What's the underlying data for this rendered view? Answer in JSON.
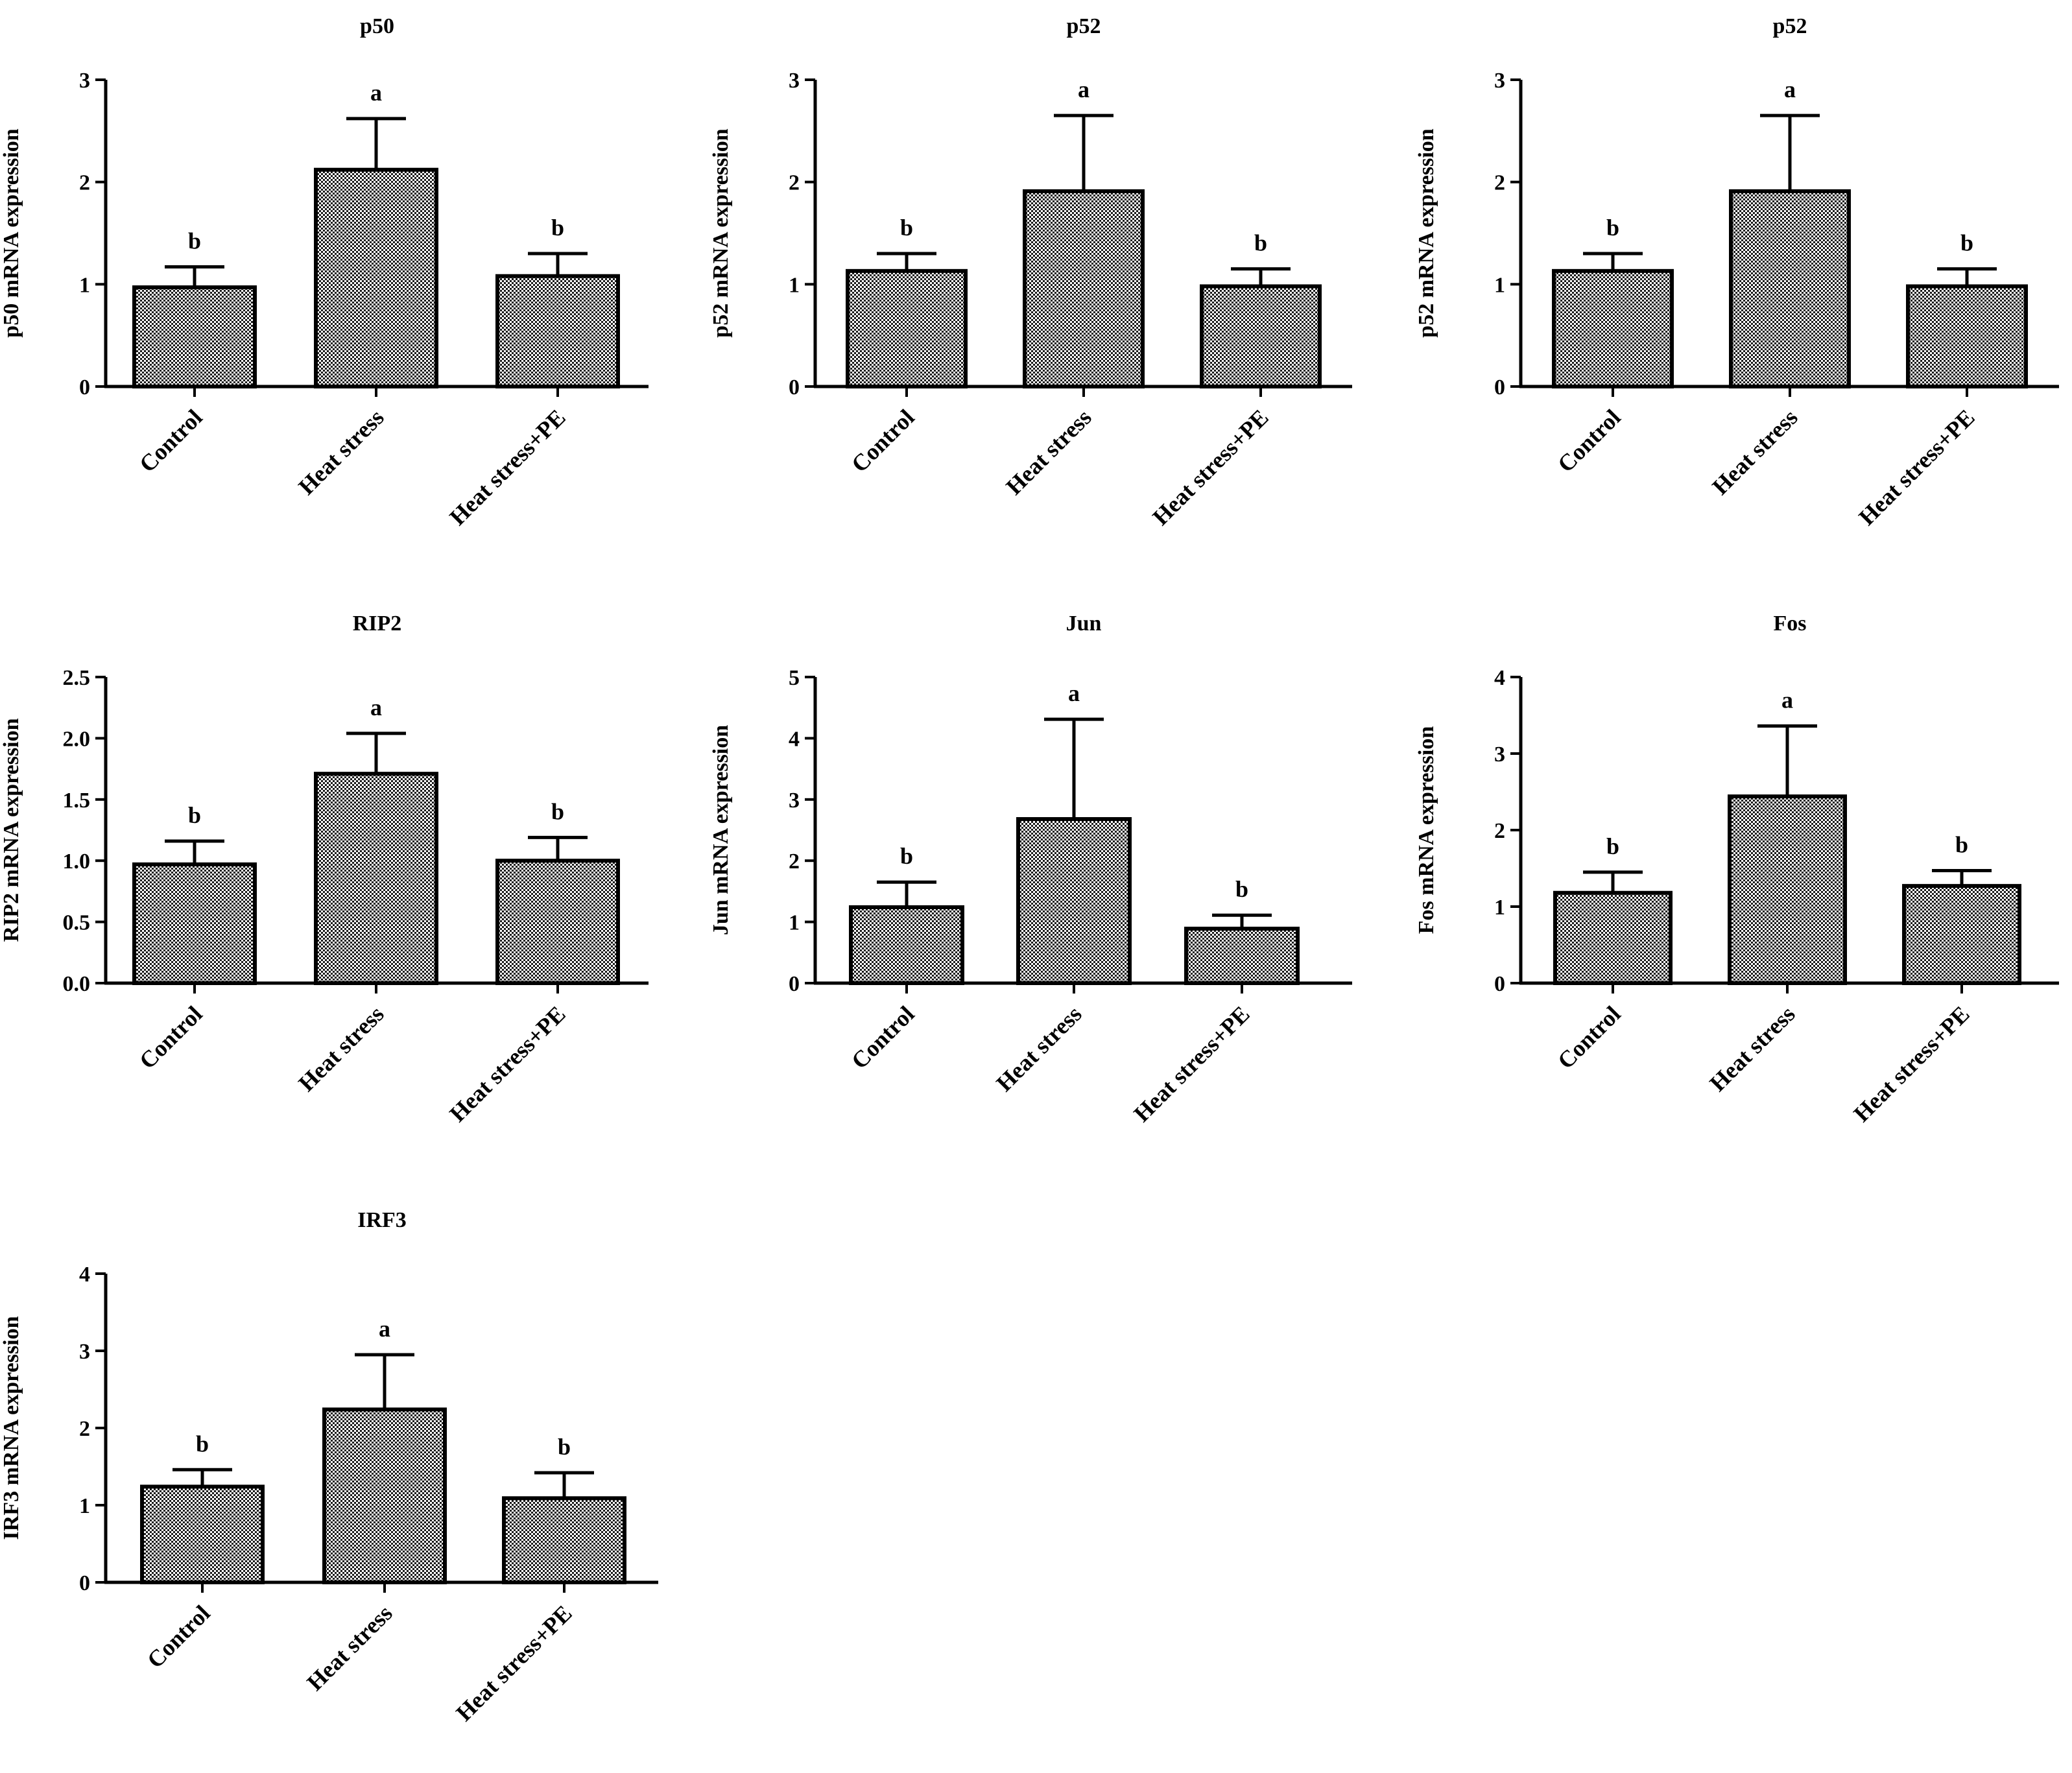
{
  "chart_data": [
    {
      "type": "bar",
      "title": "p50",
      "ylabel": "p50 mRNA expression",
      "xlabel": "",
      "categories": [
        "Control",
        "Heat stress",
        "Heat stress+PE"
      ],
      "values": [
        0.97,
        2.12,
        1.08
      ],
      "errors": [
        0.2,
        0.5,
        0.22
      ],
      "letters": [
        "b",
        "a",
        "b"
      ],
      "ylim": [
        0,
        3
      ],
      "yticks": [
        "0",
        "1",
        "2",
        "3"
      ]
    },
    {
      "type": "bar",
      "title": "p52",
      "ylabel": "p52 mRNA expression",
      "xlabel": "",
      "categories": [
        "Control",
        "Heat stress",
        "Heat stress+PE"
      ],
      "values": [
        1.13,
        1.91,
        0.98
      ],
      "errors": [
        0.17,
        0.74,
        0.17
      ],
      "letters": [
        "b",
        "a",
        "b"
      ],
      "ylim": [
        0,
        3
      ],
      "yticks": [
        "0",
        "1",
        "2",
        "3"
      ]
    },
    {
      "type": "bar",
      "title": "p52",
      "ylabel": "p52 mRNA expression",
      "xlabel": "",
      "categories": [
        "Control",
        "Heat stress",
        "Heat stress+PE"
      ],
      "values": [
        1.13,
        1.91,
        0.98
      ],
      "errors": [
        0.17,
        0.74,
        0.17
      ],
      "letters": [
        "b",
        "a",
        "b"
      ],
      "ylim": [
        0,
        3
      ],
      "yticks": [
        "0",
        "1",
        "2",
        "3"
      ]
    },
    {
      "type": "bar",
      "title": "RIP2",
      "ylabel": "RIP2 mRNA expression",
      "xlabel": "",
      "categories": [
        "Control",
        "Heat stress",
        "Heat stress+PE"
      ],
      "values": [
        0.97,
        1.71,
        1.0
      ],
      "errors": [
        0.19,
        0.33,
        0.19
      ],
      "letters": [
        "b",
        "a",
        "b"
      ],
      "ylim": [
        0,
        2.5
      ],
      "yticks": [
        "0.0",
        "0.5",
        "1.0",
        "1.5",
        "2.0",
        "2.5"
      ]
    },
    {
      "type": "bar",
      "title": "Jun",
      "ylabel": "Jun mRNA expression",
      "xlabel": "",
      "categories": [
        "Control",
        "Heat stress",
        "Heat stress+PE"
      ],
      "values": [
        1.24,
        2.68,
        0.89
      ],
      "errors": [
        0.41,
        1.63,
        0.22
      ],
      "letters": [
        "b",
        "a",
        "b"
      ],
      "ylim": [
        0,
        5
      ],
      "yticks": [
        "0",
        "1",
        "2",
        "3",
        "4",
        "5"
      ]
    },
    {
      "type": "bar",
      "title": "Fos",
      "ylabel": "Fos mRNA expression",
      "xlabel": "",
      "categories": [
        "Control",
        "Heat stress",
        "Heat stress+PE"
      ],
      "values": [
        1.18,
        2.44,
        1.27
      ],
      "errors": [
        0.27,
        0.92,
        0.2
      ],
      "letters": [
        "b",
        "a",
        "b"
      ],
      "ylim": [
        0,
        4
      ],
      "yticks": [
        "0",
        "1",
        "2",
        "3",
        "4"
      ]
    },
    {
      "type": "bar",
      "title": "IRF3",
      "ylabel": "IRF3 mRNA expression",
      "xlabel": "",
      "categories": [
        "Control",
        "Heat stress",
        "Heat stress+PE"
      ],
      "values": [
        1.24,
        2.24,
        1.09
      ],
      "errors": [
        0.22,
        0.71,
        0.33
      ],
      "letters": [
        "b",
        "a",
        "b"
      ],
      "ylim": [
        0,
        4
      ],
      "yticks": [
        "0",
        "1",
        "2",
        "3",
        "4"
      ]
    }
  ]
}
